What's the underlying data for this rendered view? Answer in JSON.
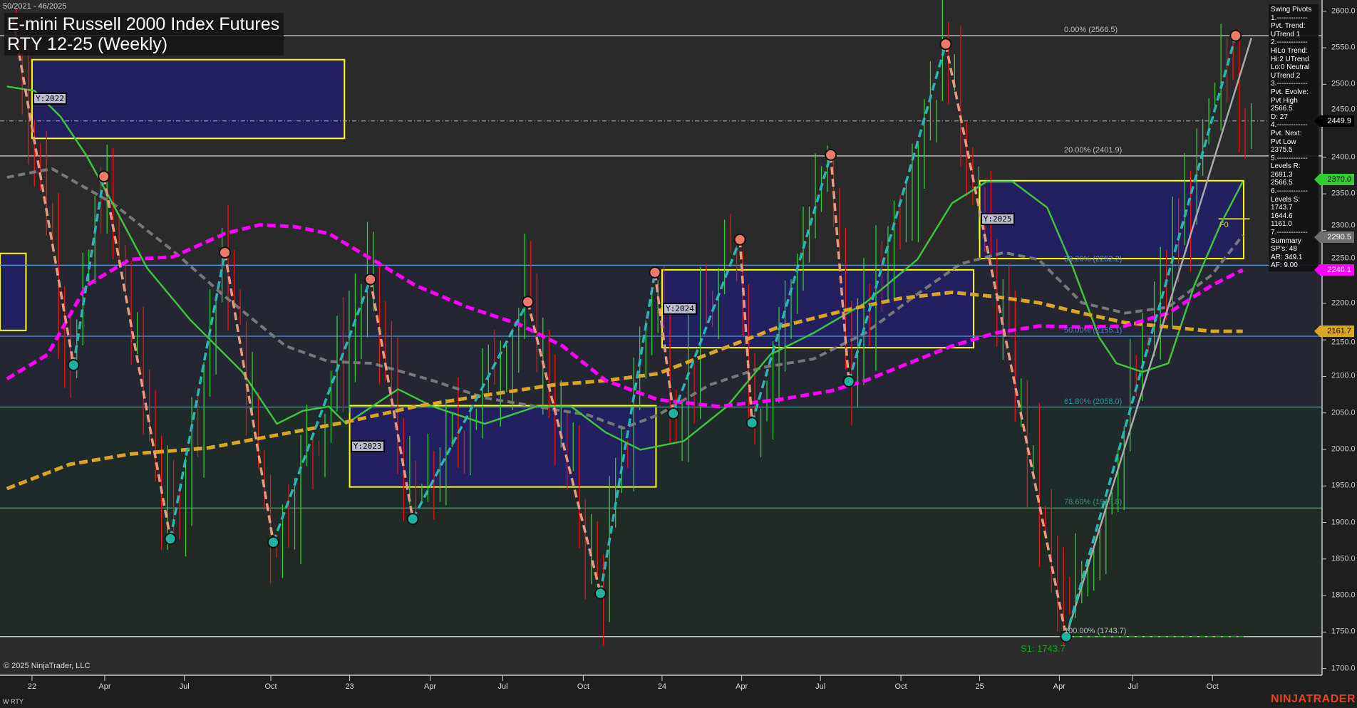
{
  "header": {
    "date_range": "50/2021 - 46/2025",
    "title_line1": "E-mini Russell 2000 Index Futures",
    "title_line2": "RTY 12-25 (Weekly)"
  },
  "info_panel": [
    "Swing Pivots",
    "1.-------------",
    "Pvt. Trend:",
    "UTrend 1",
    "2.-------------",
    "HiLo Trend:",
    "Hi:2 UTrend",
    "Lo:0 Neutral",
    "UTrend 2",
    "3.-------------",
    "Pvt. Evolve:",
    "Pvt High",
    "2566.5",
    "D: 27",
    "4.-------------",
    "Pvt. Next:",
    "Pvt Low",
    "2375.5",
    "5.-------------",
    "Levels R:",
    "2691.3",
    "2566.5",
    "6.-------------",
    "Levels S:",
    "1743.7",
    "1644.6",
    "1161.0",
    "7.-------------",
    "Summary",
    "SP's: 48",
    "AR: 349.1",
    "AF: 9.00"
  ],
  "y_axis": {
    "ticks": [
      "2600.0",
      "2550.0",
      "2500.0",
      "2450.0",
      "2400.0",
      "2350.0",
      "2300.0",
      "2250.0",
      "2200.0",
      "2150.0",
      "2100.0",
      "2050.0",
      "2000.0",
      "1950.0",
      "1900.0",
      "1850.0",
      "1800.0",
      "1750.0",
      "1700.0"
    ],
    "min": 1700,
    "max": 2600
  },
  "x_axis": {
    "ticks": [
      "22",
      "Apr",
      "Jul",
      "Oct",
      "23",
      "Apr",
      "Jul",
      "Oct",
      "24",
      "Apr",
      "Jul",
      "Oct",
      "25",
      "Apr",
      "Jul",
      "Oct"
    ]
  },
  "price_tags": [
    {
      "label": "2449.9",
      "price": 2449.9,
      "bg": "#000000",
      "fg": "#ffffff"
    },
    {
      "label": "2370.0",
      "price": 2370.0,
      "bg": "#33cc33",
      "fg": "#000000"
    },
    {
      "label": "2290.5",
      "price": 2290.5,
      "bg": "#6e6e6e",
      "fg": "#ffffff"
    },
    {
      "label": "2246.1",
      "price": 2246.1,
      "bg": "#ff00ff",
      "fg": "#ffffff"
    },
    {
      "label": "2161.7",
      "price": 2161.7,
      "bg": "#daa520",
      "fg": "#000000"
    }
  ],
  "fib_levels": [
    {
      "label": "0.00% (2566.5)",
      "price": 2566.5,
      "color": "#bdbdbd"
    },
    {
      "label": "20.00% (2401.9)",
      "price": 2401.9,
      "color": "#bdbdbd"
    },
    {
      "label": "38.20% (2252.2)",
      "price": 2252.2,
      "color": "#5b8fd8"
    },
    {
      "label": "50.00% (2155.1)",
      "price": 2155.1,
      "color": "#4a7fc0"
    },
    {
      "label": "61.80% (2058.0)",
      "price": 2058.0,
      "color": "#1a9a9a"
    },
    {
      "label": "78.60% (1919.8)",
      "price": 1919.8,
      "color": "#2e9a6a"
    },
    {
      "label": "100.00% (1743.7)",
      "price": 1743.7,
      "color": "#bdbdbd"
    }
  ],
  "support_label": "S1: 1743.7",
  "support_price": 1743.7,
  "dashdot_price": 2449.9,
  "year_labels": [
    "Y:2022",
    "Y:2023",
    "Y:2024",
    "Y:2025"
  ],
  "f0_label": "F0",
  "swing_pivots": [
    {
      "date": "2021-12-10",
      "price": 2591.7,
      "type": "start"
    },
    {
      "date": "2022-02-18",
      "price": 2115.6,
      "type": "low"
    },
    {
      "date": "2022-03-25",
      "price": 2373.8,
      "type": "high"
    },
    {
      "date": "2022-06-10",
      "price": 1877.6,
      "type": "low"
    },
    {
      "date": "2022-08-12",
      "price": 2269.6,
      "type": "high"
    },
    {
      "date": "2022-10-07",
      "price": 1872.9,
      "type": "low"
    },
    {
      "date": "2023-01-27",
      "price": 2232.9,
      "type": "high"
    },
    {
      "date": "2023-03-17",
      "price": 1904.8,
      "type": "low"
    },
    {
      "date": "2023-07-28",
      "price": 2202.1,
      "type": "high"
    },
    {
      "date": "2023-10-20",
      "price": 1803.0,
      "type": "low"
    },
    {
      "date": "2023-12-22",
      "price": 2242.4,
      "type": "high"
    },
    {
      "date": "2024-01-12",
      "price": 2049.3,
      "type": "low"
    },
    {
      "date": "2024-03-29",
      "price": 2287.4,
      "type": "high"
    },
    {
      "date": "2024-04-12",
      "price": 2036.3,
      "type": "low"
    },
    {
      "date": "2024-07-12",
      "price": 2403.4,
      "type": "high"
    },
    {
      "date": "2024-08-02",
      "price": 2093.1,
      "type": "low"
    },
    {
      "date": "2024-11-22",
      "price": 2555.0,
      "type": "high"
    },
    {
      "date": "2025-04-11",
      "price": 1743.7,
      "type": "low"
    },
    {
      "date": "2025-10-24",
      "price": 2566.5,
      "type": "high"
    }
  ],
  "colors": {
    "up_leg": "#2ab5b5",
    "down_leg": "#e89a80",
    "ma_magenta": "#ff00ff",
    "ma_orange": "#daa520",
    "ma_gray": "#777777",
    "ma_green": "#3fc23f",
    "box_border": "#ffff00",
    "box_fill": "#22205e",
    "bar_up": "#33cc33",
    "bar_down": "#ee1111"
  },
  "footer": {
    "copyright": "© 2025 NinjaTrader, LLC",
    "instrument": "W RTY",
    "logo": "NINJATRADER"
  }
}
